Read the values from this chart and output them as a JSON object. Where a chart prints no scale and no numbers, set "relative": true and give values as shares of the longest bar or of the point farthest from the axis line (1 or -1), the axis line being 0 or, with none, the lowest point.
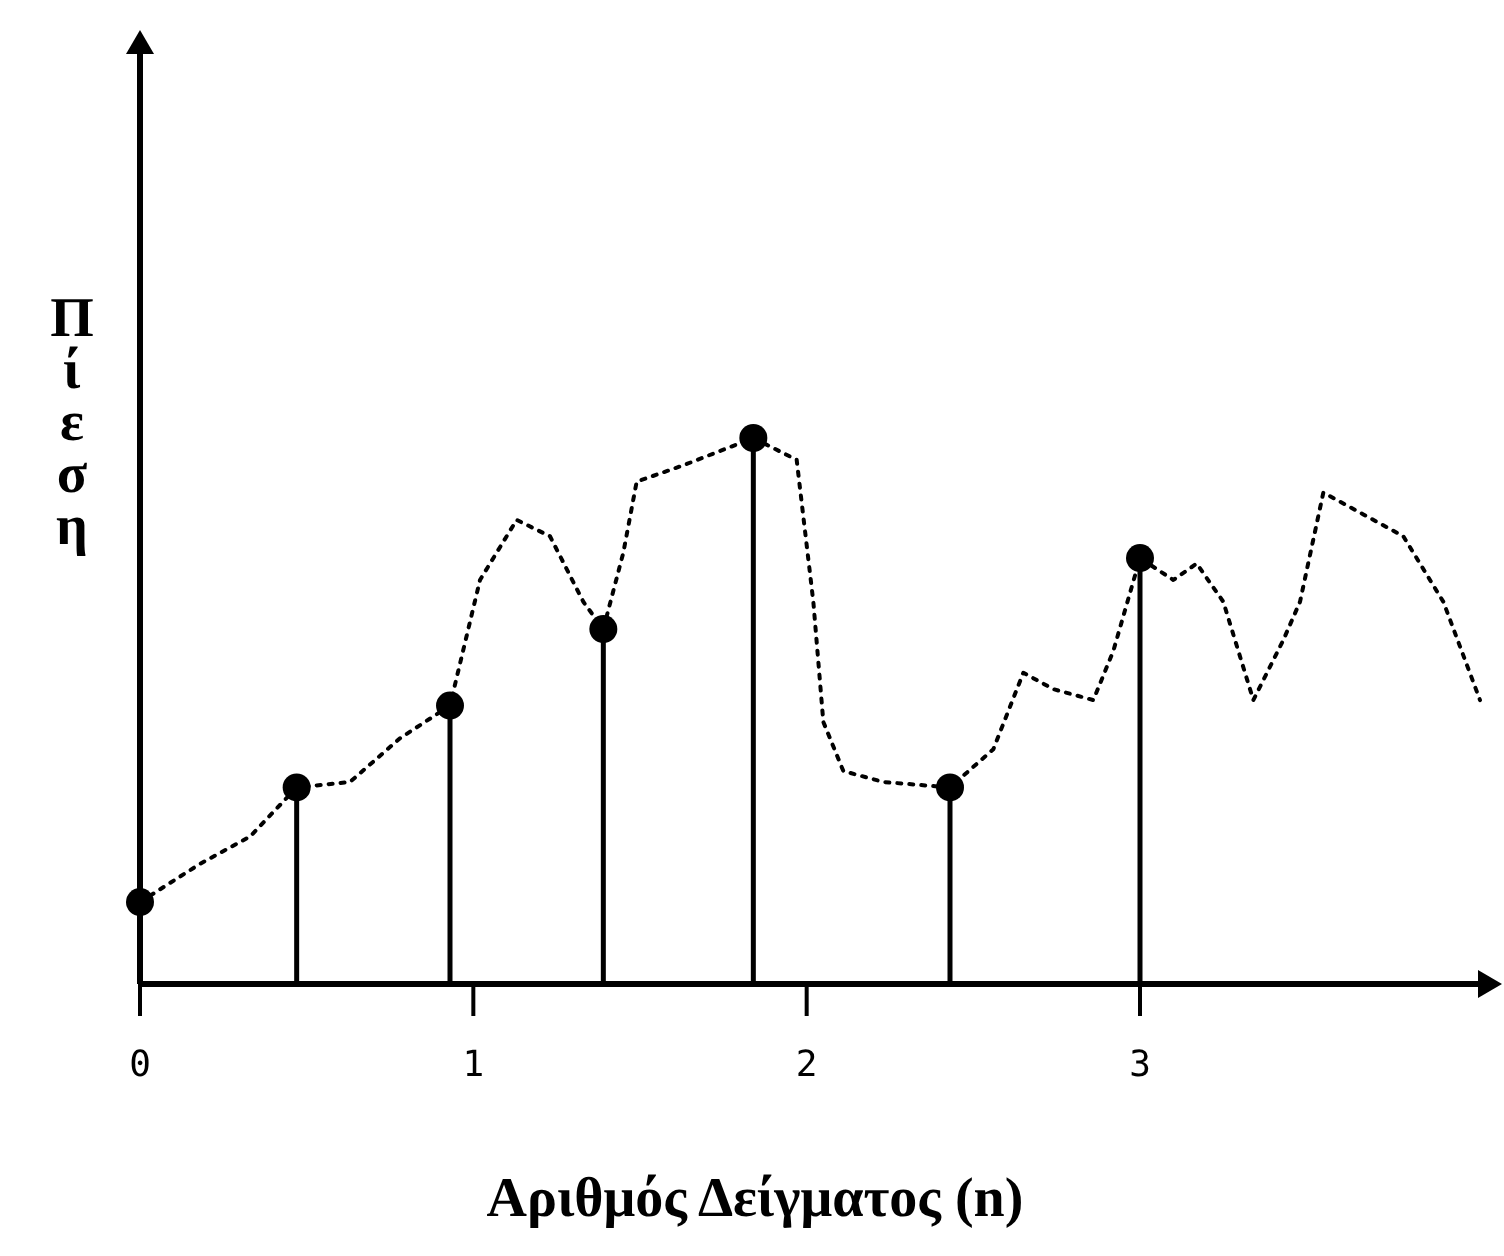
{
  "chart_data": {
    "type": "line",
    "relative": true,
    "xlabel": "Αριθμός Δείγματος (n)",
    "ylabel": "Πίεση",
    "xlim": [
      0,
      4.05
    ],
    "xticks": [
      0,
      1,
      2,
      3
    ],
    "tick_labels": "x",
    "series": [
      {
        "color": "#000000",
        "line_style": "dotted",
        "marker": "none",
        "x": [
          0,
          0.18,
          0.33,
          0.47,
          0.63,
          0.78,
          0.93,
          1.02,
          1.13,
          1.23,
          1.33,
          1.39,
          1.45,
          1.49,
          1.63,
          1.84,
          1.97,
          2.02,
          2.05,
          2.11,
          2.23,
          2.43,
          2.56,
          2.65,
          2.74,
          2.86,
          2.92,
          3.0,
          3.1,
          3.17,
          3.25,
          3.34,
          3.43,
          3.48,
          3.55,
          3.67,
          3.79,
          3.91,
          4.02
        ],
        "values": [
          0.15,
          0.22,
          0.27,
          0.36,
          0.37,
          0.45,
          0.51,
          0.74,
          0.85,
          0.82,
          0.7,
          0.65,
          0.79,
          0.92,
          0.95,
          1.0,
          0.96,
          0.7,
          0.48,
          0.39,
          0.37,
          0.36,
          0.43,
          0.57,
          0.54,
          0.52,
          0.61,
          0.78,
          0.74,
          0.77,
          0.7,
          0.52,
          0.63,
          0.7,
          0.9,
          0.86,
          0.82,
          0.7,
          0.52
        ]
      },
      {
        "type": "lollipop",
        "color": "#000000",
        "marker": "circle",
        "x": [
          0,
          0.47,
          0.93,
          1.39,
          1.84,
          2.43,
          3.0
        ],
        "values": [
          0.15,
          0.36,
          0.51,
          0.65,
          1.0,
          0.36,
          0.78
        ]
      }
    ]
  }
}
